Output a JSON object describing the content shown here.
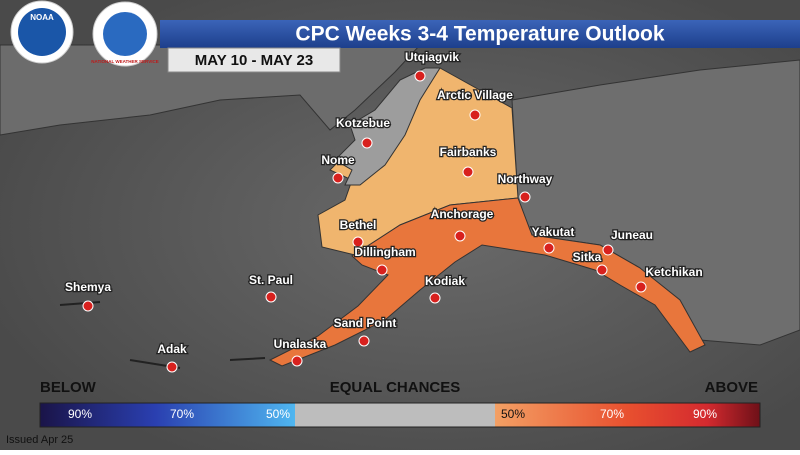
{
  "header": {
    "logos": [
      "NOAA",
      "NATIONAL WEATHER SERVICE"
    ],
    "title": "CPC Weeks 3-4 Temperature Outlook",
    "dates": "MAY 10 - MAY 23"
  },
  "cities": [
    {
      "name": "Utqiagvik"
    },
    {
      "name": "Arctic Village"
    },
    {
      "name": "Kotzebue"
    },
    {
      "name": "Fairbanks"
    },
    {
      "name": "Nome"
    },
    {
      "name": "Northway"
    },
    {
      "name": "Anchorage"
    },
    {
      "name": "Bethel"
    },
    {
      "name": "Yakutat"
    },
    {
      "name": "Juneau"
    },
    {
      "name": "Dillingham"
    },
    {
      "name": "Sitka"
    },
    {
      "name": "Ketchikan"
    },
    {
      "name": "St. Paul"
    },
    {
      "name": "Shemya"
    },
    {
      "name": "Kodiak"
    },
    {
      "name": "Sand Point"
    },
    {
      "name": "Unalaska"
    },
    {
      "name": "Adak"
    }
  ],
  "legend": {
    "below": "BELOW",
    "equal": "EQUAL CHANCES",
    "above": "ABOVE",
    "below_labels": [
      "90%",
      "70%",
      "50%"
    ],
    "above_labels": [
      "50%",
      "70%",
      "90%"
    ]
  },
  "footer": "Issued Apr 25"
}
